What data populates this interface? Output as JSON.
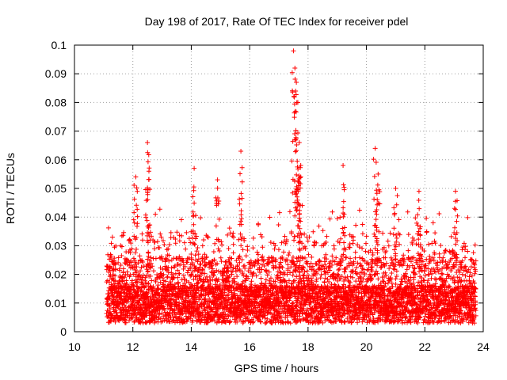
{
  "chart_data": {
    "type": "scatter",
    "title": "Day 198 of 2017, Rate Of TEC Index for receiver pdel",
    "xlabel": "GPS time / hours",
    "ylabel": "ROTI / TECUs",
    "xlim": [
      10,
      24
    ],
    "ylim": [
      0,
      0.1
    ],
    "x_ticks": [
      10,
      12,
      14,
      16,
      18,
      20,
      22,
      24
    ],
    "x_tick_labels": [
      "10",
      "12",
      "14",
      "16",
      "18",
      "20",
      "22",
      "24"
    ],
    "y_ticks": [
      0,
      0.01,
      0.02,
      0.03,
      0.04,
      0.05,
      0.06,
      0.07,
      0.08,
      0.09,
      0.1
    ],
    "y_tick_labels": [
      "0",
      "0.01",
      "0.02",
      "0.03",
      "0.04",
      "0.05",
      "0.06",
      "0.07",
      "0.08",
      "0.09",
      "0.1"
    ],
    "grid": true,
    "marker": "+",
    "marker_color": "#ff0000",
    "series": [
      {
        "name": "ROTI",
        "x_range": [
          11.1,
          23.75
        ],
        "points_shown": "approx. 6000 samples (dense)",
        "typical_range": [
          0.003,
          0.03
        ],
        "notable_peaks": [
          {
            "x": 11.3,
            "y": 0.033
          },
          {
            "x": 12.1,
            "y": 0.054
          },
          {
            "x": 12.5,
            "y": 0.066
          },
          {
            "x": 12.55,
            "y": 0.056
          },
          {
            "x": 14.1,
            "y": 0.057
          },
          {
            "x": 14.9,
            "y": 0.053
          },
          {
            "x": 15.7,
            "y": 0.063
          },
          {
            "x": 17.5,
            "y": 0.098
          },
          {
            "x": 17.55,
            "y": 0.092
          },
          {
            "x": 17.6,
            "y": 0.087
          },
          {
            "x": 17.65,
            "y": 0.08
          },
          {
            "x": 17.7,
            "y": 0.066
          },
          {
            "x": 17.75,
            "y": 0.058
          },
          {
            "x": 19.2,
            "y": 0.058
          },
          {
            "x": 20.3,
            "y": 0.064
          },
          {
            "x": 20.4,
            "y": 0.055
          },
          {
            "x": 21.0,
            "y": 0.05
          },
          {
            "x": 21.8,
            "y": 0.049
          },
          {
            "x": 23.05,
            "y": 0.049
          }
        ]
      }
    ]
  }
}
